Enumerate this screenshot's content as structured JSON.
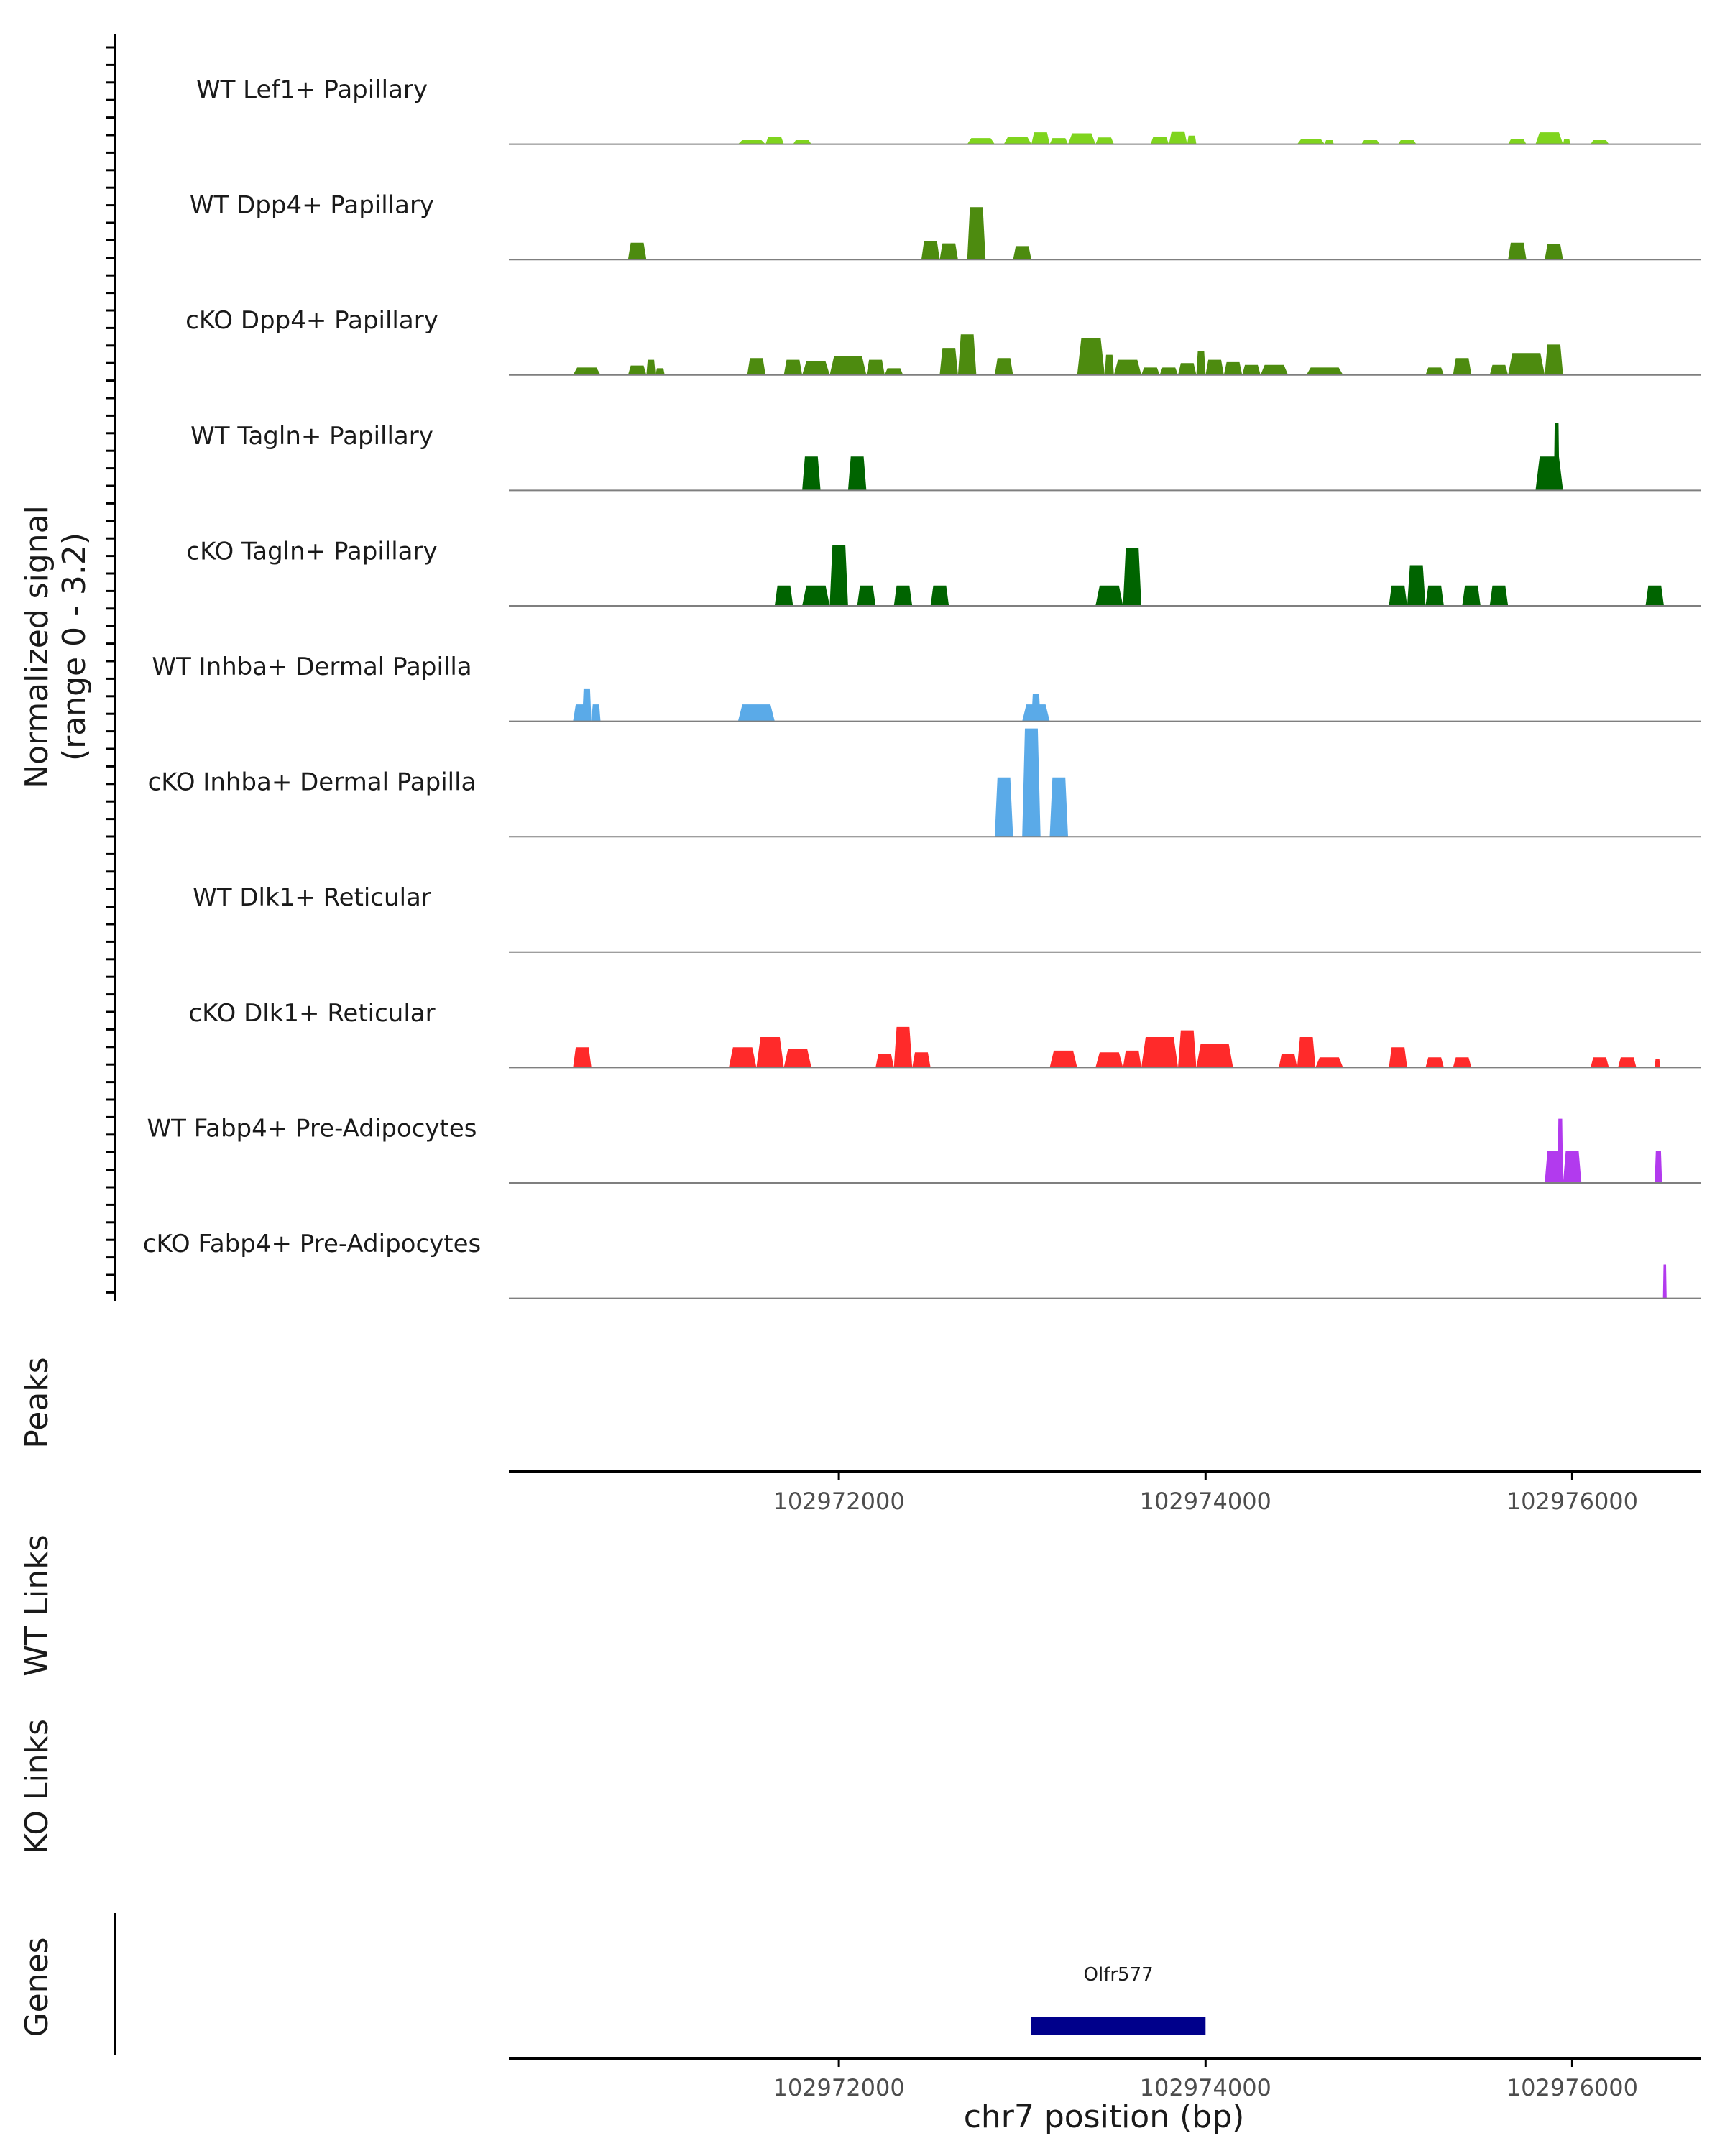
{
  "chart_data": {
    "type": "area",
    "title": "",
    "chromosome": "chr7",
    "xlabel": "chr7 position (bp)",
    "xlim": [
      102970200,
      102976700
    ],
    "x_ticks": [
      102972000,
      102974000,
      102976000
    ],
    "x_tick_labels": [
      "102972000",
      "102974000",
      "102976000"
    ],
    "signal_axis_label": "Normalized signal",
    "signal_axis_range": "(range 0 - 3.2)",
    "ylim": [
      0,
      3.2
    ],
    "tracks": [
      {
        "name": "WT Lef1+ Papillary",
        "color": "#7FD41E",
        "segments": [
          [
            102971450,
            102971600,
            0.12
          ],
          [
            102971600,
            102971700,
            0.22
          ],
          [
            102971750,
            102971850,
            0.12
          ],
          [
            102972700,
            102972850,
            0.18
          ],
          [
            102972900,
            102973050,
            0.22
          ],
          [
            102973050,
            102973150,
            0.35
          ],
          [
            102973150,
            102973250,
            0.18
          ],
          [
            102973250,
            102973400,
            0.32
          ],
          [
            102973400,
            102973500,
            0.2
          ],
          [
            102973700,
            102973800,
            0.22
          ],
          [
            102973800,
            102973900,
            0.38
          ],
          [
            102973900,
            102973950,
            0.25
          ],
          [
            102974500,
            102974650,
            0.16
          ],
          [
            102974650,
            102974700,
            0.12
          ],
          [
            102974850,
            102974950,
            0.12
          ],
          [
            102975050,
            102975150,
            0.12
          ],
          [
            102975650,
            102975750,
            0.14
          ],
          [
            102975800,
            102975950,
            0.35
          ],
          [
            102975950,
            102975990,
            0.15
          ],
          [
            102976100,
            102976200,
            0.12
          ]
        ]
      },
      {
        "name": "WT Dpp4+ Papillary",
        "color": "#4D8B0F",
        "segments": [
          [
            102970850,
            102970950,
            0.5
          ],
          [
            102972450,
            102972550,
            0.55
          ],
          [
            102972550,
            102972650,
            0.48
          ],
          [
            102972700,
            102972800,
            1.55
          ],
          [
            102972950,
            102973050,
            0.4
          ],
          [
            102975650,
            102975750,
            0.5
          ],
          [
            102975850,
            102975950,
            0.45
          ]
        ]
      },
      {
        "name": "cKO Dpp4+ Papillary",
        "color": "#4D8B0F",
        "segments": [
          [
            102970550,
            102970700,
            0.22
          ],
          [
            102970850,
            102970950,
            0.28
          ],
          [
            102970950,
            102971000,
            0.45
          ],
          [
            102971000,
            102971050,
            0.2
          ],
          [
            102971500,
            102971600,
            0.5
          ],
          [
            102971700,
            102971800,
            0.45
          ],
          [
            102971800,
            102971950,
            0.4
          ],
          [
            102971950,
            102972150,
            0.55
          ],
          [
            102972150,
            102972250,
            0.45
          ],
          [
            102972250,
            102972350,
            0.2
          ],
          [
            102972550,
            102972650,
            0.8
          ],
          [
            102972650,
            102972750,
            1.2
          ],
          [
            102972850,
            102972950,
            0.5
          ],
          [
            102973300,
            102973450,
            1.1
          ],
          [
            102973450,
            102973500,
            0.6
          ],
          [
            102973500,
            102973650,
            0.45
          ],
          [
            102973650,
            102973750,
            0.22
          ],
          [
            102973750,
            102973850,
            0.22
          ],
          [
            102973850,
            102973950,
            0.35
          ],
          [
            102973950,
            102974000,
            0.7
          ],
          [
            102974000,
            102974100,
            0.45
          ],
          [
            102974100,
            102974200,
            0.38
          ],
          [
            102974200,
            102974300,
            0.3
          ],
          [
            102974300,
            102974450,
            0.3
          ],
          [
            102974550,
            102974750,
            0.22
          ],
          [
            102975200,
            102975300,
            0.22
          ],
          [
            102975350,
            102975450,
            0.5
          ],
          [
            102975550,
            102975650,
            0.3
          ],
          [
            102975650,
            102975850,
            0.65
          ],
          [
            102975850,
            102975950,
            0.9
          ]
        ]
      },
      {
        "name": "WT Tagln+ Papillary",
        "color": "#006400",
        "segments": [
          [
            102971800,
            102971900,
            1.0
          ],
          [
            102972050,
            102972150,
            1.0
          ],
          [
            102975800,
            102975950,
            1.0
          ],
          [
            102975900,
            102975930,
            2.0
          ]
        ]
      },
      {
        "name": "cKO Tagln+ Papillary",
        "color": "#006400",
        "segments": [
          [
            102971650,
            102971750,
            0.6
          ],
          [
            102971800,
            102971950,
            0.6
          ],
          [
            102971950,
            102972050,
            1.8
          ],
          [
            102972100,
            102972200,
            0.6
          ],
          [
            102972300,
            102972400,
            0.6
          ],
          [
            102972500,
            102972600,
            0.6
          ],
          [
            102973400,
            102973550,
            0.6
          ],
          [
            102973550,
            102973650,
            1.7
          ],
          [
            102975000,
            102975100,
            0.6
          ],
          [
            102975100,
            102975200,
            1.2
          ],
          [
            102975200,
            102975300,
            0.6
          ],
          [
            102975400,
            102975500,
            0.6
          ],
          [
            102975550,
            102975650,
            0.6
          ],
          [
            102976400,
            102976500,
            0.6
          ]
        ]
      },
      {
        "name": "WT Inhba+ Dermal Papilla",
        "color": "#5AAAE8",
        "segments": [
          [
            102970550,
            102970650,
            0.5
          ],
          [
            102970600,
            102970650,
            0.95
          ],
          [
            102970650,
            102970700,
            0.5
          ],
          [
            102971450,
            102971650,
            0.5
          ],
          [
            102973000,
            102973150,
            0.5
          ],
          [
            102973050,
            102973100,
            0.8
          ]
        ]
      },
      {
        "name": "cKO Inhba+ Dermal Papilla",
        "color": "#5AAAE8",
        "segments": [
          [
            102972850,
            102972950,
            1.75
          ],
          [
            102973000,
            102973100,
            3.2
          ],
          [
            102973150,
            102973250,
            1.75
          ]
        ]
      },
      {
        "name": "WT Dlk1+ Reticular",
        "color": "#FF2A2A",
        "segments": []
      },
      {
        "name": "cKO Dlk1+ Reticular",
        "color": "#FF2A2A",
        "segments": [
          [
            102970550,
            102970650,
            0.6
          ],
          [
            102971400,
            102971550,
            0.6
          ],
          [
            102971550,
            102971700,
            0.9
          ],
          [
            102971700,
            102971850,
            0.55
          ],
          [
            102972200,
            102972300,
            0.4
          ],
          [
            102972300,
            102972400,
            1.2
          ],
          [
            102972400,
            102972500,
            0.45
          ],
          [
            102973150,
            102973300,
            0.5
          ],
          [
            102973400,
            102973550,
            0.45
          ],
          [
            102973550,
            102973650,
            0.5
          ],
          [
            102973650,
            102973850,
            0.9
          ],
          [
            102973850,
            102973950,
            1.1
          ],
          [
            102973950,
            102974150,
            0.7
          ],
          [
            102974400,
            102974500,
            0.4
          ],
          [
            102974500,
            102974600,
            0.9
          ],
          [
            102974600,
            102974750,
            0.3
          ],
          [
            102975000,
            102975100,
            0.6
          ],
          [
            102975200,
            102975300,
            0.3
          ],
          [
            102975350,
            102975450,
            0.3
          ],
          [
            102976100,
            102976200,
            0.3
          ],
          [
            102976250,
            102976350,
            0.3
          ],
          [
            102976450,
            102976480,
            0.25
          ]
        ]
      },
      {
        "name": "WT Fabp4+ Pre-Adipocytes",
        "color": "#B23AEE",
        "segments": [
          [
            102975850,
            102975950,
            0.95
          ],
          [
            102975950,
            102976050,
            0.95
          ],
          [
            102975920,
            102975950,
            1.9
          ],
          [
            102976450,
            102976490,
            0.95
          ]
        ]
      },
      {
        "name": "cKO Fabp4+ Pre-Adipocytes",
        "color": "#B23AEE",
        "segments": [
          [
            102976495,
            102976515,
            1.0
          ]
        ]
      }
    ],
    "peaks_label": "Peaks",
    "wt_links_label": "WT Links",
    "ko_links_label": "KO Links",
    "genes_label": "Genes",
    "genes": [
      {
        "name": "Olfr577",
        "start": 102973050,
        "end": 102974000,
        "color": "#00008B"
      }
    ]
  }
}
